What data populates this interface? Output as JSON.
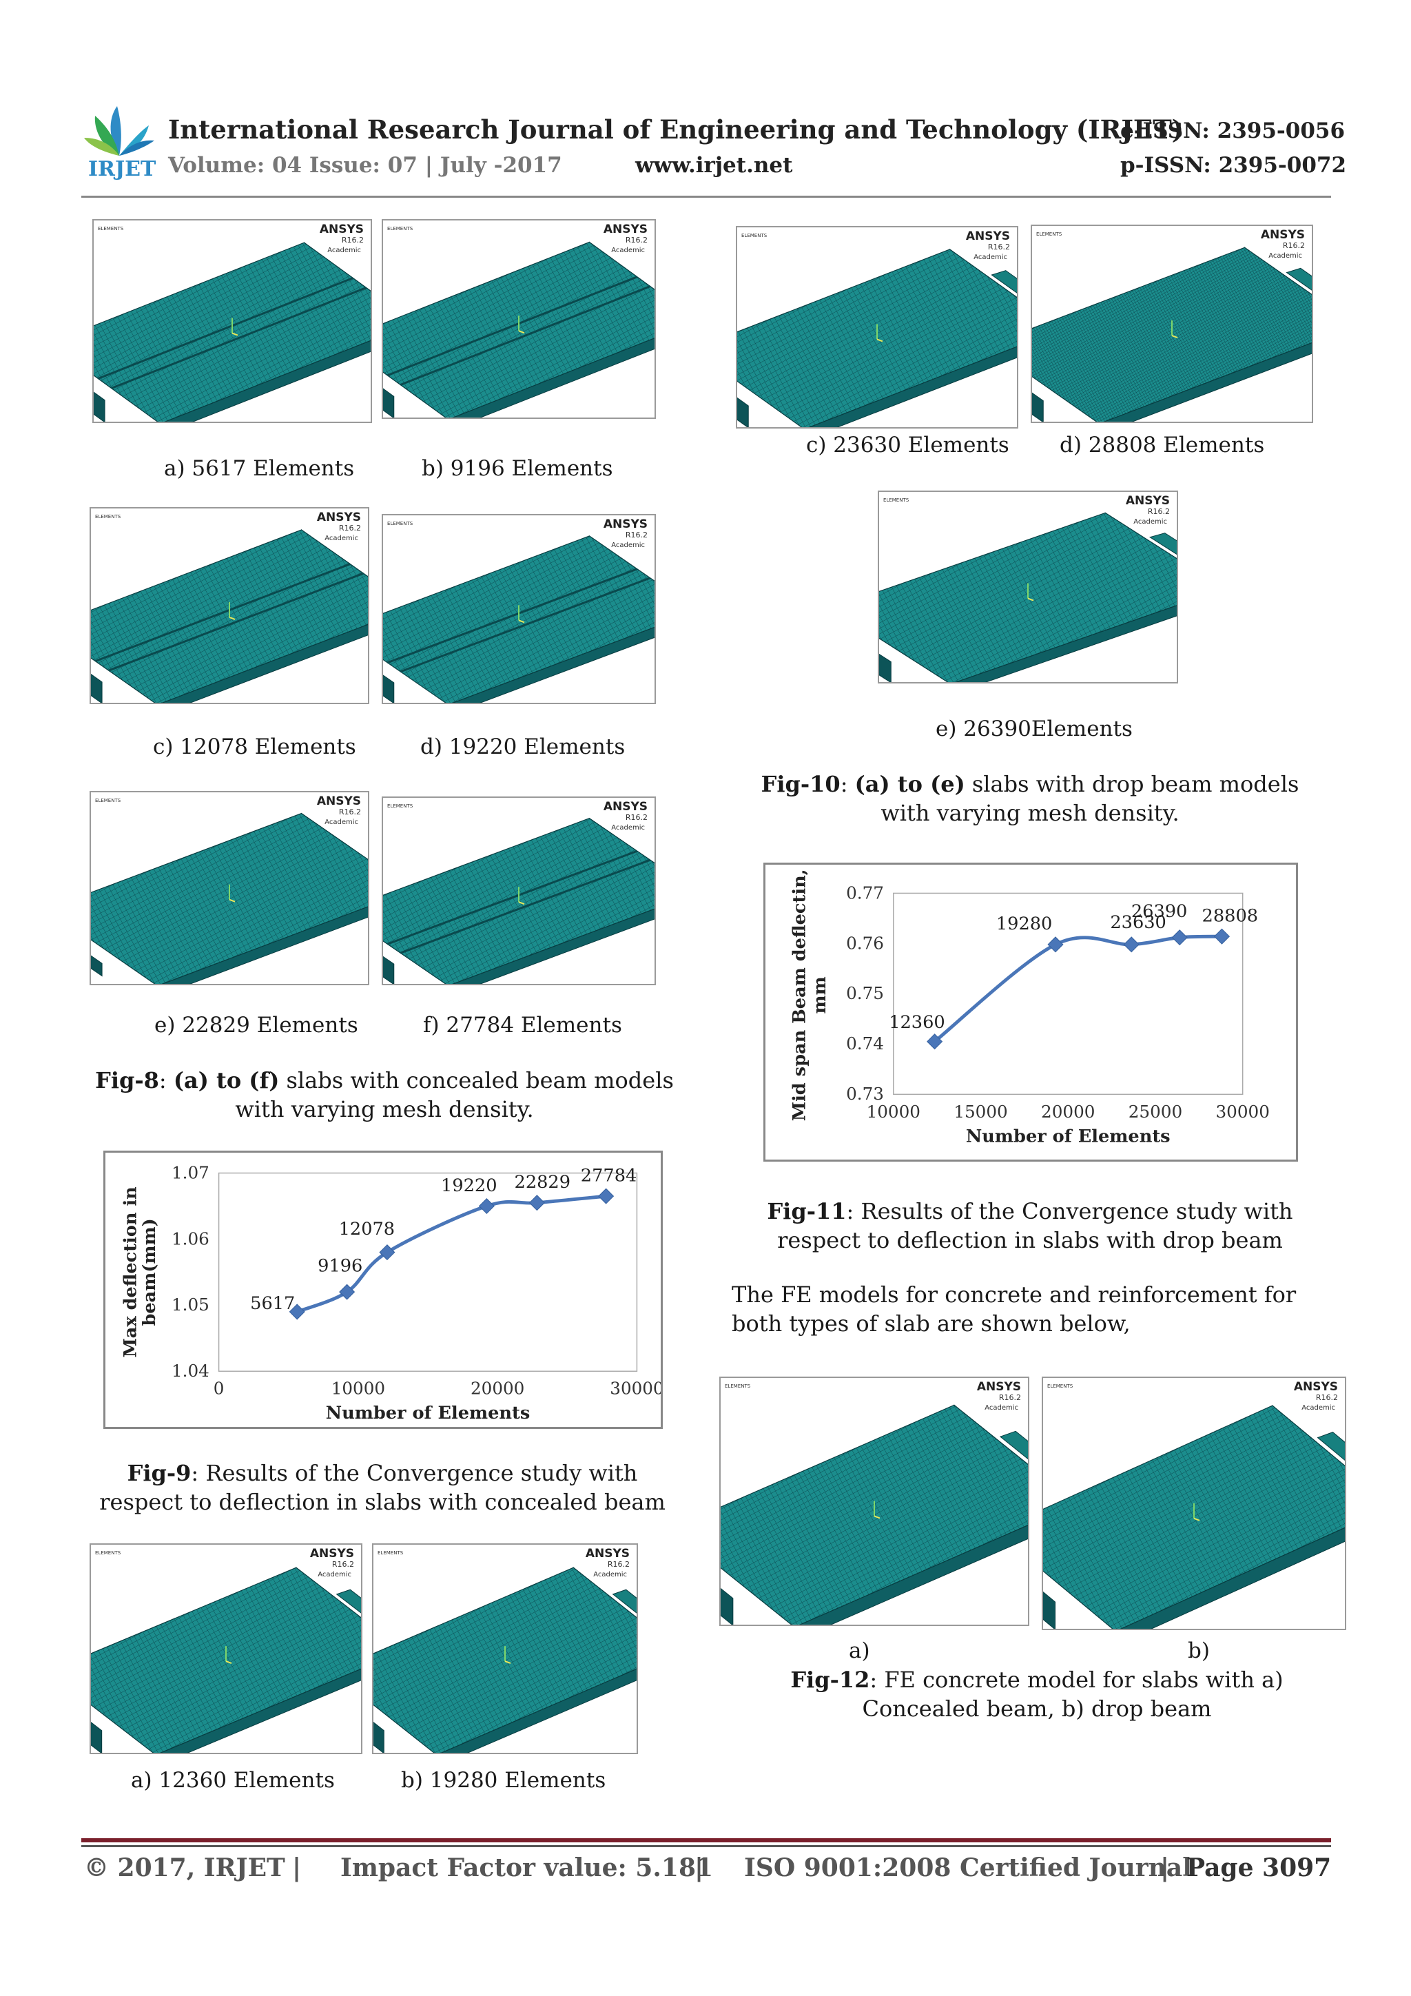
{
  "header": {
    "logo_text": "IRJET",
    "title": "International Research Journal of Engineering and Technology (IRJET)",
    "volume": "Volume: 04 Issue: 07 | July -2017",
    "website": "www.irjet.net",
    "eissn": "e-ISSN: 2395-0056",
    "pissn": "p-ISSN: 2395-0072"
  },
  "ansys": {
    "brand": "ANSYS",
    "version": "R16.2",
    "edition": "Academic",
    "label": "ELEMENTS"
  },
  "fig8": {
    "captions": [
      "a) 5617 Elements",
      "b) 9196 Elements",
      "c) 12078 Elements",
      "d) 19220 Elements",
      "e) 22829 Elements",
      "f) 27784 Elements"
    ],
    "label": "Fig-8",
    "range": "(a) to (f)",
    "text": "slabs with concealed beam models with varying mesh density."
  },
  "fig9": {
    "label": "Fig-9",
    "text": "Results of the Convergence study with respect to deflection in slabs with concealed beam"
  },
  "fig_bottom_left": {
    "captions": [
      "a) 12360 Elements",
      "b) 19280 Elements"
    ]
  },
  "fig10": {
    "captions": [
      "c) 23630 Elements",
      "d) 28808 Elements",
      "e) 26390Elements"
    ],
    "label": "Fig-10",
    "range": "(a) to (e)",
    "text": "slabs with drop beam models with varying mesh density."
  },
  "fig11": {
    "label": "Fig-11",
    "text": "Results of the Convergence study with respect to deflection in slabs with drop beam"
  },
  "paragraph": "The FE models for concrete and reinforcement for both types of slab are shown below,",
  "fig12": {
    "sub_a": "a)",
    "sub_b": "b)",
    "label": "Fig-12",
    "text": "FE concrete model for slabs with a) Concealed beam,  b) drop beam"
  },
  "footer": {
    "copyright": "© 2017, IRJET",
    "impact": "Impact Factor value: 5.181",
    "iso": "ISO 9001:2008 Certified Journal",
    "page": "Page 3097",
    "sep": "|"
  },
  "chart_data": [
    {
      "type": "line",
      "title": "",
      "xlabel": "Number of Elements",
      "ylabel": "Max deflection in beam(mm)",
      "x": [
        5617,
        9196,
        12078,
        19220,
        22829,
        27784
      ],
      "y": [
        1.049,
        1.052,
        1.058,
        1.065,
        1.0655,
        1.0665
      ],
      "point_labels": [
        "5617",
        "9196",
        "12078",
        "19220",
        "22829",
        "27784"
      ],
      "xlim": [
        0,
        30000
      ],
      "ylim": [
        1.04,
        1.07
      ],
      "xticks": [
        "0",
        "10000",
        "20000",
        "30000"
      ],
      "yticks": [
        "1.04",
        "1.05",
        "1.06",
        "1.07"
      ],
      "color": "#4a76b8"
    },
    {
      "type": "line",
      "title": "",
      "xlabel": "Number of Elements",
      "ylabel": "Mid span Beam deflectin, mm",
      "x": [
        12360,
        19280,
        23630,
        26390,
        28808
      ],
      "y": [
        0.7405,
        0.7598,
        0.7598,
        0.7612,
        0.7614
      ],
      "point_labels": [
        "12360",
        "19280",
        "23630",
        "26390",
        "28808"
      ],
      "xlim": [
        10000,
        30000
      ],
      "ylim": [
        0.73,
        0.77
      ],
      "xticks": [
        "10000",
        "15000",
        "20000",
        "25000",
        "30000"
      ],
      "yticks": [
        "0.73",
        "0.74",
        "0.75",
        "0.76",
        "0.77"
      ],
      "color": "#4a76b8"
    }
  ]
}
